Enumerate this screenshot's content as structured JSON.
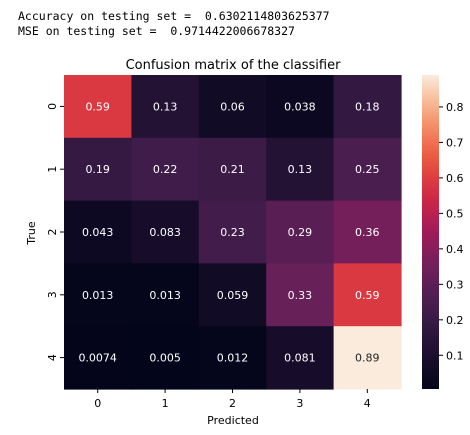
{
  "output": {
    "line1": "Accuracy on testing set =  0.6302114803625377",
    "line2": "MSE on testing set =  0.9714422006678327"
  },
  "chart_data": {
    "type": "heatmap",
    "title": "Confusion matrix of the classifier",
    "xlabel": "Predicted",
    "ylabel": "True",
    "x_categories": [
      "0",
      "1",
      "2",
      "3",
      "4"
    ],
    "y_categories": [
      "0",
      "1",
      "2",
      "3",
      "4"
    ],
    "values": [
      [
        0.59,
        0.13,
        0.06,
        0.038,
        0.18
      ],
      [
        0.19,
        0.22,
        0.21,
        0.13,
        0.25
      ],
      [
        0.043,
        0.083,
        0.23,
        0.29,
        0.36
      ],
      [
        0.013,
        0.013,
        0.059,
        0.33,
        0.59
      ],
      [
        0.0074,
        0.005,
        0.012,
        0.081,
        0.89
      ]
    ],
    "cell_labels": [
      [
        "0.59",
        "0.13",
        "0.06",
        "0.038",
        "0.18"
      ],
      [
        "0.19",
        "0.22",
        "0.21",
        "0.13",
        "0.25"
      ],
      [
        "0.043",
        "0.083",
        "0.23",
        "0.29",
        "0.36"
      ],
      [
        "0.013",
        "0.013",
        "0.059",
        "0.33",
        "0.59"
      ],
      [
        "0.0074",
        "0.005",
        "0.012",
        "0.081",
        "0.89"
      ]
    ],
    "colorbar_ticks": [
      "0.1",
      "0.2",
      "0.3",
      "0.4",
      "0.5",
      "0.6",
      "0.7",
      "0.8"
    ],
    "colorbar_range": [
      0.005,
      0.89
    ],
    "colormap": "rocket",
    "grid": false,
    "legend": "colorbar-right"
  }
}
